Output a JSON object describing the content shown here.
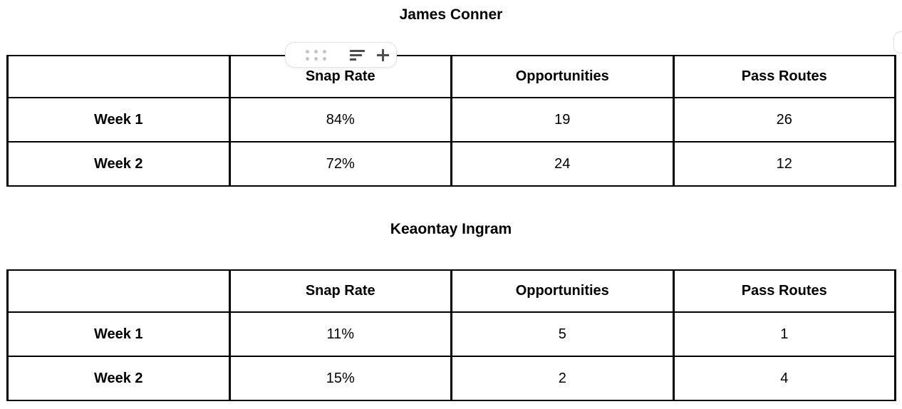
{
  "document": {
    "background_color": "#ffffff",
    "text_color": "#000000",
    "table_border_color": "#000000"
  },
  "column_toolbar": {
    "drag_handle_icon": "six-dot-grid",
    "align_icon": "align-left",
    "add_icon": "plus",
    "pill_background": "#ffffff",
    "pill_border_color": "#e3e3e3",
    "dots_color": "#c4c4c4",
    "icon_color": "#4d4d4d"
  },
  "tables": [
    {
      "title": "James Conner",
      "columns": [
        "",
        "Snap Rate",
        "Opportunities",
        "Pass Routes"
      ],
      "rows": [
        {
          "label": "Week 1",
          "values": [
            "84%",
            "19",
            "26"
          ]
        },
        {
          "label": "Week 2",
          "values": [
            "72%",
            "24",
            "12"
          ]
        }
      ]
    },
    {
      "title": "Keaontay Ingram",
      "columns": [
        "",
        "Snap Rate",
        "Opportunities",
        "Pass Routes"
      ],
      "rows": [
        {
          "label": "Week 1",
          "values": [
            "11%",
            "5",
            "1"
          ]
        },
        {
          "label": "Week 2",
          "values": [
            "15%",
            "2",
            "4"
          ]
        }
      ]
    }
  ]
}
